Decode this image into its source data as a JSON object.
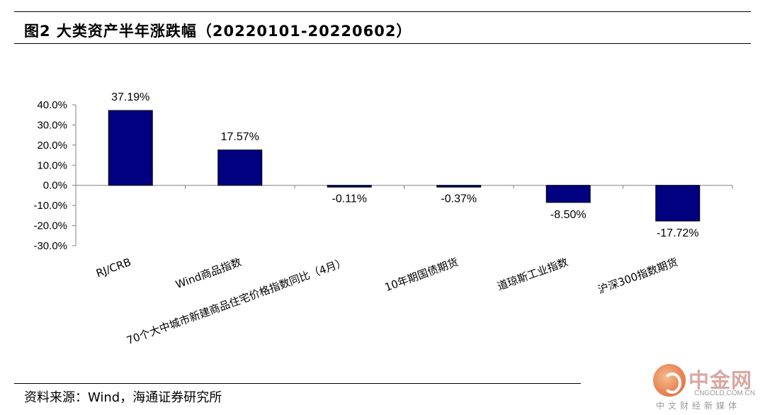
{
  "figure": {
    "title": "图2   大类资产半年涨跌幅（20220101-20220602）",
    "source": "资料来源：Wind，海通证券研究所"
  },
  "watermark": {
    "name": "中金网",
    "domain": "CNGOLD.COM.CN",
    "slogan": "中文财经新媒体"
  },
  "colors": {
    "bar_fill": "#000080",
    "bar_stroke": "#000000",
    "axis": "#808080"
  },
  "chart_data": {
    "type": "bar",
    "title": "",
    "xlabel": "",
    "ylabel": "",
    "ylim": [
      -0.3,
      0.4
    ],
    "yticks": [
      0.4,
      0.3,
      0.2,
      0.1,
      0.0,
      -0.1,
      -0.2,
      -0.3
    ],
    "ytick_labels": [
      "40.0%",
      "30.0%",
      "20.0%",
      "10.0%",
      "0.0%",
      "-10.0%",
      "-20.0%",
      "-30.0%"
    ],
    "categories": [
      "RJ/CRB",
      "Wind商品指数",
      "70个大中城市新建商品住宅价格指数同比（4月）",
      "10年期国债期货",
      "道琼斯工业指数",
      "沪深300指数期货"
    ],
    "values": [
      0.3719,
      0.1757,
      -0.0011,
      -0.0037,
      -0.085,
      -0.1772
    ],
    "data_labels": [
      "37.19%",
      "17.57%",
      "-0.11%",
      "-0.37%",
      "-8.50%",
      "-17.72%"
    ],
    "grid": false,
    "legend": "none"
  }
}
